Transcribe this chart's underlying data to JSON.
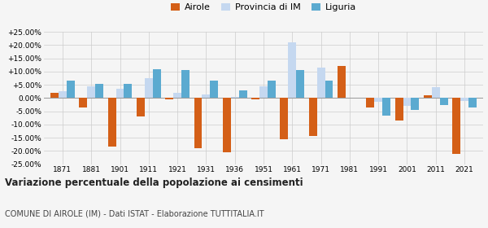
{
  "years": [
    1871,
    1881,
    1901,
    1911,
    1921,
    1931,
    1936,
    1951,
    1961,
    1971,
    1981,
    1991,
    2001,
    2011,
    2021
  ],
  "airole": [
    2.0,
    -3.5,
    -18.5,
    -7.0,
    -0.5,
    -19.0,
    -20.5,
    -0.5,
    -15.5,
    -14.5,
    12.0,
    -3.5,
    -8.5,
    1.0,
    -21.0
  ],
  "provincia_im": [
    2.5,
    4.5,
    3.5,
    7.5,
    2.0,
    1.5,
    0.5,
    4.5,
    21.0,
    11.5,
    0.0,
    -1.5,
    -3.0,
    4.0,
    -1.0
  ],
  "liguria": [
    6.5,
    5.5,
    5.5,
    11.0,
    10.5,
    6.5,
    3.0,
    6.5,
    10.5,
    6.5,
    0.0,
    -6.5,
    -4.5,
    -2.5,
    -3.5
  ],
  "airole_color": "#d45f17",
  "provincia_color": "#c5d8f0",
  "liguria_color": "#5baad0",
  "title": "Variazione percentuale della popolazione ai censimenti",
  "subtitle": "COMUNE DI AIROLE (IM) - Dati ISTAT - Elaborazione TUTTITALIA.IT",
  "ylim": [
    -25,
    25
  ],
  "yticks": [
    -25,
    -20,
    -15,
    -10,
    -5,
    0,
    5,
    10,
    15,
    20,
    25
  ],
  "legend_labels": [
    "Airole",
    "Provincia di IM",
    "Liguria"
  ],
  "bg_color": "#f5f5f5"
}
